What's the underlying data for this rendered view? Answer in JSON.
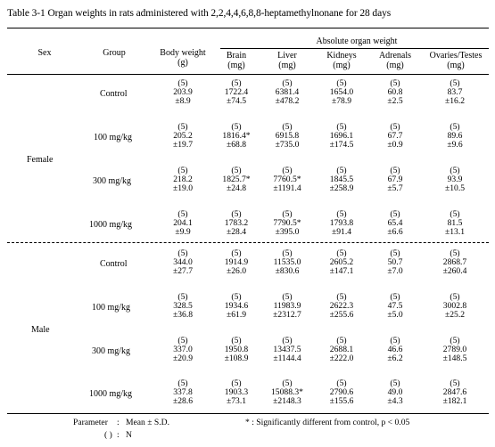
{
  "caption": "Table 3-1   Organ weights in rats administered with 2,2,4,4,6,8,8-heptamethylnonane for 28 days",
  "headers": {
    "sex": "Sex",
    "group": "Group",
    "body_weight": "Body weight",
    "body_weight_unit": "(g)",
    "absolute": "Absolute organ weight",
    "brain": "Brain",
    "liver": "Liver",
    "kidneys": "Kidneys",
    "adrenals": "Adrenals",
    "ovaries_testes": "Ovaries/Testes",
    "unit_mg": "(mg)"
  },
  "sexes": [
    "Female",
    "Male"
  ],
  "rows": [
    {
      "group": "Control",
      "cells": [
        {
          "n": "(5)",
          "mean": "203.9",
          "sd": "±8.9"
        },
        {
          "n": "(5)",
          "mean": "1722.4",
          "sd": "±74.5"
        },
        {
          "n": "(5)",
          "mean": "6381.4",
          "sd": "±478.2"
        },
        {
          "n": "(5)",
          "mean": "1654.0",
          "sd": "±78.9"
        },
        {
          "n": "(5)",
          "mean": "60.8",
          "sd": "±2.5"
        },
        {
          "n": "(5)",
          "mean": "83.7",
          "sd": "±16.2"
        }
      ]
    },
    {
      "group": "100 mg/kg",
      "cells": [
        {
          "n": "(5)",
          "mean": "205.2",
          "sd": "±19.7"
        },
        {
          "n": "(5)",
          "mean": "1816.4*",
          "sd": "±68.8"
        },
        {
          "n": "(5)",
          "mean": "6915.8",
          "sd": "±735.0"
        },
        {
          "n": "(5)",
          "mean": "1696.1",
          "sd": "±174.5"
        },
        {
          "n": "(5)",
          "mean": "67.7",
          "sd": "±0.9"
        },
        {
          "n": "(5)",
          "mean": "89.6",
          "sd": "±9.6"
        }
      ]
    },
    {
      "group": "300 mg/kg",
      "cells": [
        {
          "n": "(5)",
          "mean": "218.2",
          "sd": "±19.0"
        },
        {
          "n": "(5)",
          "mean": "1825.7*",
          "sd": "±24.8"
        },
        {
          "n": "(5)",
          "mean": "7760.5*",
          "sd": "±1191.4"
        },
        {
          "n": "(5)",
          "mean": "1845.5",
          "sd": "±258.9"
        },
        {
          "n": "(5)",
          "mean": "67.9",
          "sd": "±5.7"
        },
        {
          "n": "(5)",
          "mean": "93.9",
          "sd": "±10.5"
        }
      ]
    },
    {
      "group": "1000 mg/kg",
      "cells": [
        {
          "n": "(5)",
          "mean": "204.1",
          "sd": "±9.9"
        },
        {
          "n": "(5)",
          "mean": "1783.2",
          "sd": "±28.4"
        },
        {
          "n": "(5)",
          "mean": "7790.5*",
          "sd": "±395.0"
        },
        {
          "n": "(5)",
          "mean": "1793.8",
          "sd": "±91.4"
        },
        {
          "n": "(5)",
          "mean": "65.4",
          "sd": "±6.6"
        },
        {
          "n": "(5)",
          "mean": "81.5",
          "sd": "±13.1"
        }
      ]
    },
    {
      "group": "Control",
      "cells": [
        {
          "n": "(5)",
          "mean": "344.0",
          "sd": "±27.7"
        },
        {
          "n": "(5)",
          "mean": "1914.9",
          "sd": "±26.0"
        },
        {
          "n": "(5)",
          "mean": "11535.0",
          "sd": "±830.6"
        },
        {
          "n": "(5)",
          "mean": "2605.2",
          "sd": "±147.1"
        },
        {
          "n": "(5)",
          "mean": "50.7",
          "sd": "±7.0"
        },
        {
          "n": "(5)",
          "mean": "2868.7",
          "sd": "±260.4"
        }
      ]
    },
    {
      "group": "100 mg/kg",
      "cells": [
        {
          "n": "(5)",
          "mean": "328.5",
          "sd": "±36.8"
        },
        {
          "n": "(5)",
          "mean": "1934.6",
          "sd": "±61.9"
        },
        {
          "n": "(5)",
          "mean": "11983.9",
          "sd": "±2312.7"
        },
        {
          "n": "(5)",
          "mean": "2622.3",
          "sd": "±255.6"
        },
        {
          "n": "(5)",
          "mean": "47.5",
          "sd": "±5.0"
        },
        {
          "n": "(5)",
          "mean": "3002.8",
          "sd": "±25.2"
        }
      ]
    },
    {
      "group": "300 mg/kg",
      "cells": [
        {
          "n": "(5)",
          "mean": "337.0",
          "sd": "±20.9"
        },
        {
          "n": "(5)",
          "mean": "1950.8",
          "sd": "±108.9"
        },
        {
          "n": "(5)",
          "mean": "13437.5",
          "sd": "±1144.4"
        },
        {
          "n": "(5)",
          "mean": "2688.1",
          "sd": "±222.0"
        },
        {
          "n": "(5)",
          "mean": "46.6",
          "sd": "±6.2"
        },
        {
          "n": "(5)",
          "mean": "2789.0",
          "sd": "±148.5"
        }
      ]
    },
    {
      "group": "1000 mg/kg",
      "cells": [
        {
          "n": "(5)",
          "mean": "337.8",
          "sd": "±28.6"
        },
        {
          "n": "(5)",
          "mean": "1903.3",
          "sd": "±73.1"
        },
        {
          "n": "(5)",
          "mean": "15088.3*",
          "sd": "±2148.3"
        },
        {
          "n": "(5)",
          "mean": "2790.6",
          "sd": "±155.6"
        },
        {
          "n": "(5)",
          "mean": "49.0",
          "sd": "±4.3"
        },
        {
          "n": "(5)",
          "mean": "2847.6",
          "sd": "±182.1"
        }
      ]
    }
  ],
  "footnotes": {
    "param_label": "Parameter",
    "param_colon": ":",
    "param_value": "Mean ± S.D.",
    "n_label": "( )",
    "n_colon": ":",
    "n_value": "N",
    "significance": "* : Significantly different from control, p < 0.05"
  }
}
